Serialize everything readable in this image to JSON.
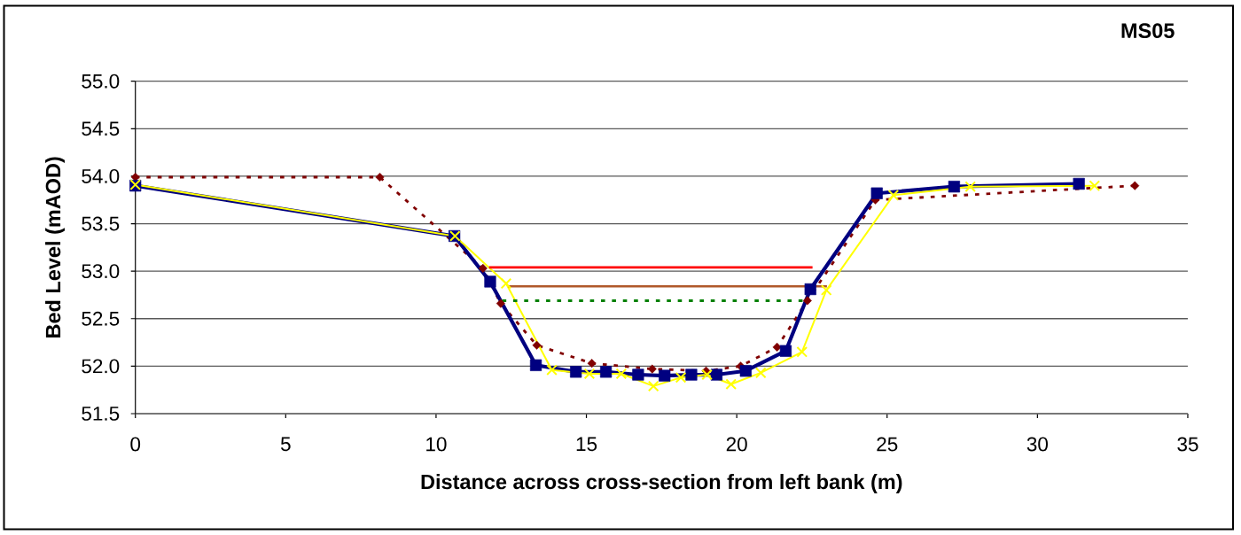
{
  "chart_data": {
    "type": "line",
    "title": "MS05",
    "xlabel": "Distance across cross-section from left bank (m)",
    "ylabel": "Bed Level (mAOD)",
    "xlim": [
      0,
      35
    ],
    "ylim": [
      51.5,
      55
    ],
    "xticks": [
      0,
      5,
      10,
      15,
      20,
      25,
      30,
      35
    ],
    "yticks": [
      51.5,
      {
        "value": 52,
        "label": "52.0"
      },
      52.5,
      {
        "value": 53,
        "label": "53.0"
      },
      53.5,
      {
        "value": 54,
        "label": "54.0"
      },
      54.5,
      {
        "value": 55,
        "label": "55.0"
      }
    ],
    "grid": "y",
    "series": [
      {
        "color": "#800000",
        "marker": "diamond",
        "line_style": "dotted",
        "x": [
          0,
          8.13,
          11.56,
          12.15,
          13.35,
          15.18,
          17.19,
          18.98,
          20.13,
          21.34,
          22.35,
          24.61,
          33.24
        ],
        "values": [
          53.99,
          53.99,
          53.03,
          52.66,
          52.22,
          52.03,
          51.97,
          51.95,
          52.0,
          52.2,
          52.69,
          53.75,
          53.9
        ]
      },
      {
        "color": "#000080",
        "marker": "square",
        "line_style": "solid",
        "x": [
          0,
          10.61,
          11.8,
          13.32,
          14.65,
          15.65,
          16.72,
          17.6,
          18.49,
          19.33,
          20.3,
          21.63,
          22.45,
          24.66,
          27.23,
          31.38
        ],
        "values": [
          53.9,
          53.37,
          52.89,
          52.01,
          51.94,
          51.94,
          51.91,
          51.9,
          51.91,
          51.91,
          51.95,
          52.16,
          52.81,
          53.82,
          53.89,
          53.92
        ]
      },
      {
        "color": "#ffff00",
        "marker": "cross",
        "line_style": "solid",
        "x": [
          0,
          10.63,
          12.33,
          13.85,
          15.1,
          16.16,
          17.23,
          18.14,
          19.01,
          19.81,
          20.8,
          22.17,
          22.98,
          25.21,
          27.77,
          31.9
        ],
        "values": [
          53.91,
          53.37,
          52.87,
          51.96,
          51.92,
          51.92,
          51.79,
          51.88,
          51.91,
          51.81,
          51.93,
          52.15,
          52.8,
          53.8,
          53.89,
          53.9
        ]
      },
      {
        "color": "#ff0000",
        "marker": "none",
        "line_style": "solid",
        "x": [
          11.76,
          22.52
        ],
        "values": [
          53.04,
          53.04
        ]
      },
      {
        "color": "#b0582a",
        "marker": "none",
        "line_style": "solid",
        "x": [
          12.4,
          23.0
        ],
        "values": [
          52.84,
          52.84
        ]
      },
      {
        "color": "#008000",
        "marker": "none",
        "line_style": "dotted",
        "x": [
          12.2,
          22.19
        ],
        "values": [
          52.69,
          52.69
        ]
      }
    ]
  }
}
